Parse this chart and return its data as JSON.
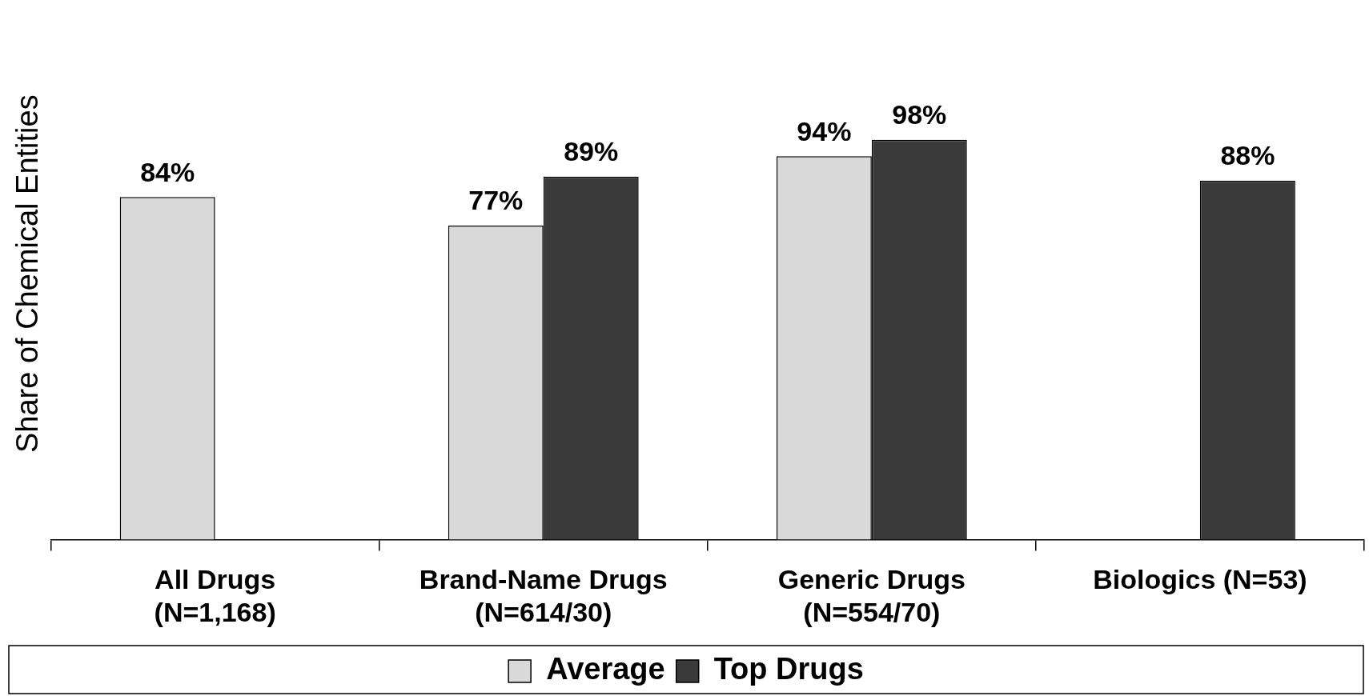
{
  "chart_data": {
    "type": "bar",
    "ylabel": "Share of Chemical Entities",
    "categories": [
      "All Drugs (N=1,168)",
      "Brand-Name Drugs (N=614/30)",
      "Generic Drugs (N=554/70)",
      "Biologics (N=53)"
    ],
    "series": [
      {
        "name": "Average",
        "color": "#d9d9d9",
        "values": [
          84,
          77,
          94,
          null
        ],
        "value_labels": [
          "84%",
          "77%",
          "94%",
          null
        ]
      },
      {
        "name": "Top Drugs",
        "color": "#3a3a3a",
        "values": [
          null,
          89,
          98,
          88
        ],
        "value_labels": [
          null,
          "89%",
          "98%",
          "88%"
        ]
      }
    ],
    "legend": "bottom",
    "grid": false,
    "tick_labels": "x"
  }
}
